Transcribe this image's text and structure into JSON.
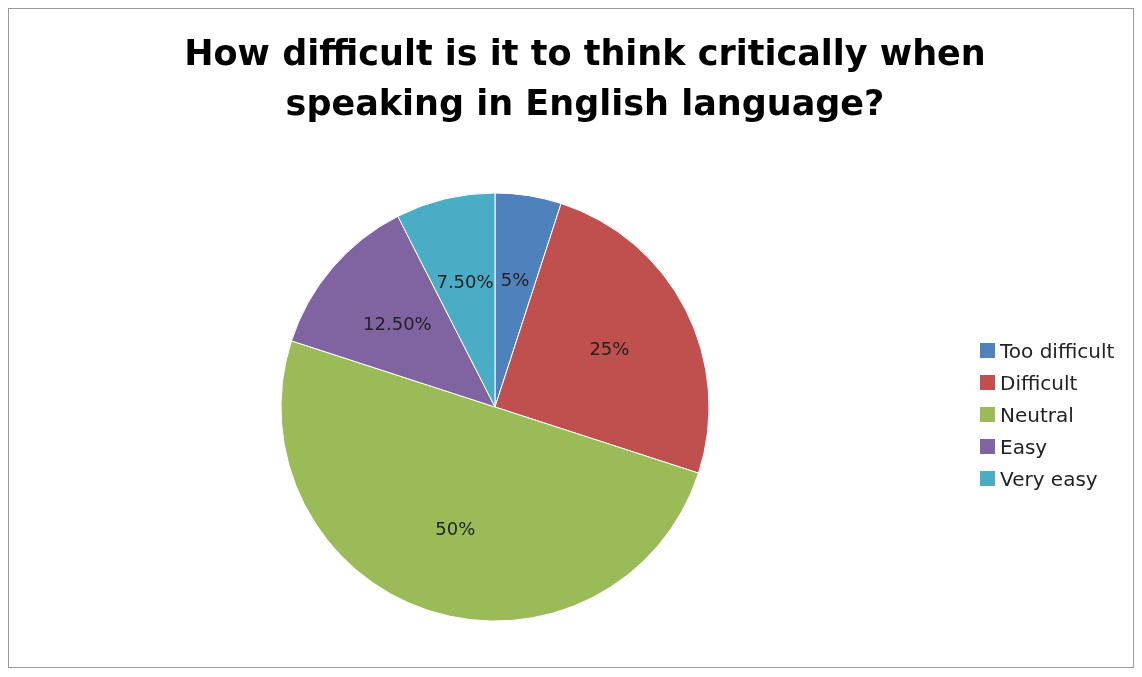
{
  "chart_data": {
    "type": "pie",
    "title": "How difficult is it to think critically when speaking in English language?",
    "categories": [
      "Too difficult",
      "Difficult",
      "Neutral",
      "Easy",
      "Very easy"
    ],
    "values": [
      5,
      25,
      50,
      12.5,
      7.5
    ],
    "value_labels": [
      "5%",
      "25%",
      "50%",
      "12.50%",
      "7.50%"
    ],
    "colors": [
      "#4f81bd",
      "#c0504d",
      "#9bbb59",
      "#8064a2",
      "#4bacc6"
    ],
    "legend": "right"
  }
}
